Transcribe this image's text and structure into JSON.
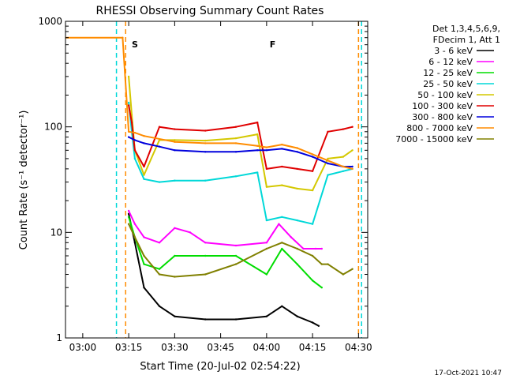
{
  "chart_data": {
    "type": "line",
    "title": "RHESSI Observing Summary Count Rates",
    "xlabel": "Start Time (20-Jul-02 02:54:22)",
    "ylabel": "Count Rate (s⁻¹ detector⁻¹)",
    "y_scale": "log",
    "ylim": [
      1,
      1000
    ],
    "xlim": [
      "02:54:22",
      "04:33:00"
    ],
    "x_ticks": [
      "03:00",
      "03:15",
      "03:30",
      "03:45",
      "04:00",
      "04:15",
      "04:30"
    ],
    "y_ticks": [
      "1",
      "10",
      "100",
      "1000"
    ],
    "legend_header": [
      "Det 1,3,4,5,6,9,",
      "FDecim 1, Att 1"
    ],
    "legend_position": "top-right",
    "grid": false,
    "flags": [
      {
        "label": "S",
        "color": "#ff8c00",
        "x": "03:16"
      },
      {
        "label": "F",
        "color": "#e00000",
        "x": "04:01"
      }
    ],
    "vlines": [
      {
        "x": "03:11",
        "color": "#00d8d8",
        "style": "dashed"
      },
      {
        "x": "03:14",
        "color": "#ff8c00",
        "style": "dashed"
      },
      {
        "x": "04:30",
        "color": "#ff8c00",
        "style": "dashed"
      },
      {
        "x": "04:31",
        "color": "#00d8d8",
        "style": "dashed"
      }
    ],
    "series": [
      {
        "name": "3 - 6 keV",
        "color": "#000000",
        "x": [
          "03:15",
          "03:17",
          "03:20",
          "03:25",
          "03:30",
          "03:40",
          "03:50",
          "04:00",
          "04:05",
          "04:10",
          "04:15",
          "04:17"
        ],
        "values": [
          15,
          8,
          3,
          2,
          1.6,
          1.5,
          1.5,
          1.6,
          2,
          1.6,
          1.4,
          1.3
        ]
      },
      {
        "name": "6 - 12 keV",
        "color": "#ff00ff",
        "x": [
          "03:15",
          "03:17",
          "03:20",
          "03:25",
          "03:30",
          "03:35",
          "03:40",
          "03:50",
          "04:00",
          "04:04",
          "04:08",
          "04:12",
          "04:16",
          "04:18"
        ],
        "values": [
          16,
          12,
          9,
          8,
          11,
          10,
          8,
          7.5,
          8,
          12,
          9,
          7,
          7,
          7
        ]
      },
      {
        "name": "12 - 25 keV",
        "color": "#00dd00",
        "x": [
          "03:15",
          "03:17",
          "03:20",
          "03:25",
          "03:30",
          "03:40",
          "03:50",
          "04:00",
          "04:05",
          "04:10",
          "04:15",
          "04:18"
        ],
        "values": [
          14,
          9,
          5,
          4.5,
          6,
          6,
          6,
          4,
          7,
          5,
          3.5,
          3
        ]
      },
      {
        "name": "25 - 50 keV",
        "color": "#00d8d8",
        "x": [
          "03:15",
          "03:16",
          "03:17",
          "03:20",
          "03:25",
          "03:30",
          "03:40",
          "03:50",
          "03:57",
          "04:00",
          "04:05",
          "04:10",
          "04:15",
          "04:20",
          "04:25",
          "04:28"
        ],
        "values": [
          170,
          90,
          50,
          32,
          30,
          31,
          31,
          34,
          37,
          13,
          14,
          13,
          12,
          35,
          38,
          40
        ]
      },
      {
        "name": "50 - 100 keV",
        "color": "#d4c800",
        "x": [
          "03:15",
          "03:16",
          "03:17",
          "03:20",
          "03:25",
          "03:30",
          "03:40",
          "03:50",
          "03:57",
          "04:00",
          "04:05",
          "04:10",
          "04:15",
          "04:20",
          "04:25",
          "04:28"
        ],
        "values": [
          300,
          130,
          60,
          35,
          75,
          75,
          74,
          78,
          85,
          27,
          28,
          26,
          25,
          50,
          52,
          60
        ]
      },
      {
        "name": "100 - 300 keV",
        "color": "#e00000",
        "x": [
          "03:15",
          "03:16",
          "03:17",
          "03:20",
          "03:25",
          "03:30",
          "03:40",
          "03:50",
          "03:57",
          "04:00",
          "04:05",
          "04:10",
          "04:15",
          "04:20",
          "04:25",
          "04:28"
        ],
        "values": [
          160,
          110,
          60,
          42,
          100,
          95,
          92,
          100,
          110,
          40,
          42,
          40,
          38,
          90,
          95,
          100
        ]
      },
      {
        "name": "300 - 800 keV",
        "color": "#0000dd",
        "x": [
          "03:15",
          "03:17",
          "03:20",
          "03:25",
          "03:30",
          "03:40",
          "03:50",
          "03:57",
          "04:00",
          "04:05",
          "04:10",
          "04:15",
          "04:20",
          "04:25",
          "04:28"
        ],
        "values": [
          80,
          75,
          70,
          65,
          60,
          58,
          58,
          60,
          60,
          62,
          58,
          52,
          45,
          42,
          42
        ]
      },
      {
        "name": "800 - 7000 keV",
        "color": "#ff8c00",
        "x": [
          "02:54",
          "03:13",
          "03:15",
          "03:17",
          "03:20",
          "03:30",
          "03:40",
          "03:50",
          "03:57",
          "04:00",
          "04:05",
          "04:10",
          "04:15",
          "04:20",
          "04:25",
          "04:28"
        ],
        "values": [
          700,
          700,
          90,
          88,
          82,
          72,
          70,
          70,
          66,
          64,
          68,
          63,
          55,
          48,
          42,
          40
        ]
      },
      {
        "name": "7000 - 15000 keV",
        "color": "#808000",
        "x": [
          "03:15",
          "03:17",
          "03:20",
          "03:25",
          "03:30",
          "03:40",
          "03:50",
          "04:00",
          "04:05",
          "04:10",
          "04:15",
          "04:18",
          "04:20",
          "04:25",
          "04:28"
        ],
        "values": [
          12,
          9,
          6,
          4,
          3.8,
          4,
          5,
          7,
          8,
          7,
          6,
          5,
          5,
          4,
          4.5
        ]
      }
    ]
  },
  "footer": {
    "timestamp": "17-Oct-2021 10:47"
  }
}
